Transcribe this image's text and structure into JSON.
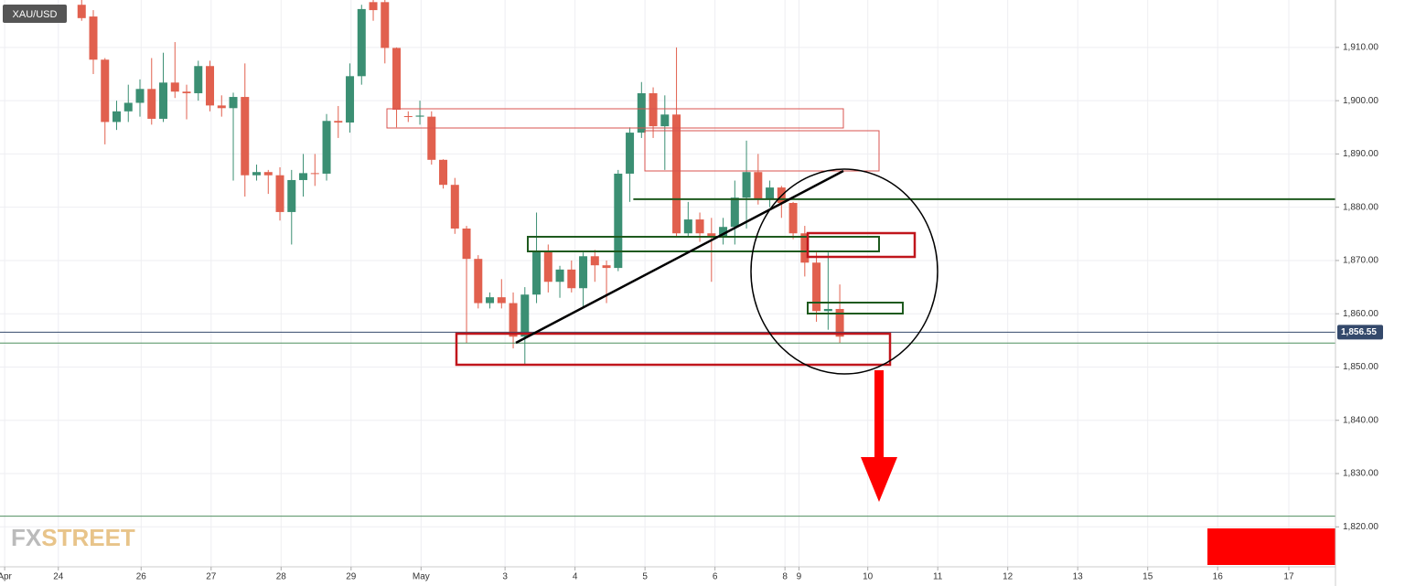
{
  "chart_data": {
    "type": "candlestick",
    "symbol": "XAU/USD",
    "logo": {
      "part1": "FX",
      "part2": "STREET"
    },
    "up_color": "#3b8f73",
    "down_color": "#e1604e",
    "xlim": [
      0,
      114.5
    ],
    "ylim": [
      1812.5,
      1918.9
    ],
    "yticks": [
      {
        "value": 1820,
        "label": "1,820.00"
      },
      {
        "value": 1830,
        "label": "1,830.00"
      },
      {
        "value": 1840,
        "label": "1,840.00"
      },
      {
        "value": 1850,
        "label": "1,850.00"
      },
      {
        "value": 1860,
        "label": "1,860.00"
      },
      {
        "value": 1870,
        "label": "1,870.00"
      },
      {
        "value": 1880,
        "label": "1,880.00"
      },
      {
        "value": 1890,
        "label": "1,890.00"
      },
      {
        "value": 1900,
        "label": "1,900.00"
      },
      {
        "value": 1910,
        "label": "1,910.00"
      }
    ],
    "xticks": [
      {
        "value": 0.4,
        "label": "Apr"
      },
      {
        "value": 5.0,
        "label": "24"
      },
      {
        "value": 12.1,
        "label": "26"
      },
      {
        "value": 18.1,
        "label": "27"
      },
      {
        "value": 24.1,
        "label": "28"
      },
      {
        "value": 30.1,
        "label": "29"
      },
      {
        "value": 36.1,
        "label": "May"
      },
      {
        "value": 43.3,
        "label": "3"
      },
      {
        "value": 49.3,
        "label": "4"
      },
      {
        "value": 55.3,
        "label": "5"
      },
      {
        "value": 61.3,
        "label": "6"
      },
      {
        "value": 67.3,
        "label": "8"
      },
      {
        "value": 68.5,
        "label": "9"
      },
      {
        "value": 74.4,
        "label": "10"
      },
      {
        "value": 80.4,
        "label": "11"
      },
      {
        "value": 86.4,
        "label": "12"
      },
      {
        "value": 92.4,
        "label": "13"
      },
      {
        "value": 98.4,
        "label": "15"
      },
      {
        "value": 104.4,
        "label": "16"
      },
      {
        "value": 110.5,
        "label": "17"
      }
    ],
    "x": [
      7,
      8,
      9,
      10,
      11,
      12,
      13,
      14,
      15,
      16,
      17,
      18,
      19,
      20,
      21,
      22,
      23,
      24,
      25,
      26,
      27,
      28,
      29,
      30,
      31,
      32,
      33,
      34,
      35,
      36,
      37,
      38,
      39,
      40,
      41,
      42,
      43,
      44,
      45,
      46,
      47,
      48,
      49,
      50,
      51,
      52,
      53,
      54,
      55,
      56,
      57,
      58,
      59,
      60,
      61,
      62,
      63,
      64,
      65,
      66,
      67,
      68,
      69,
      70,
      71,
      72
    ],
    "open": [
      1918,
      1915.8,
      1907.7,
      1896,
      1898,
      1899.6,
      1902.2,
      1896.6,
      1903.4,
      1901.7,
      1901.4,
      1906.5,
      1899.1,
      1898.6,
      1900.7,
      1886,
      1886.6,
      1886,
      1879.1,
      1885.1,
      1886.4,
      1886.3,
      1896.2,
      1895.9,
      1904.6,
      1918.5,
      1918.5,
      1909.9,
      1897.1,
      1897,
      1897,
      1888.9,
      1884.2,
      1876,
      1870.3,
      1862,
      1863.1,
      1862,
      1855.7,
      1863.6,
      1871.7,
      1866,
      1868.3,
      1864.8,
      1870.8,
      1869.1,
      1868.6,
      1886.3,
      1894,
      1901.4,
      1895.2,
      1897.4,
      1875.1,
      1877.7,
      1875.1,
      1874.6,
      1876.3,
      1881.8,
      1886.6,
      1881.5,
      1883.7,
      1880.8,
      1875.1,
      1869.6,
      1860.5,
      1860.9
    ],
    "high": [
      1918.9,
      1917,
      1908,
      1900,
      1903,
      1904,
      1908,
      1909,
      1911,
      1903,
      1907.5,
      1907.5,
      1901,
      1901.5,
      1907,
      1888,
      1887,
      1887.5,
      1887,
      1890,
      1890,
      1897.5,
      1899,
      1907,
      1918,
      1918.9,
      1918.9,
      1910,
      1898,
      1900,
      1898,
      1889,
      1885.5,
      1876.5,
      1871,
      1864,
      1866.5,
      1864,
      1865,
      1879,
      1873,
      1869,
      1870,
      1871.5,
      1872,
      1870,
      1887,
      1895,
      1903.5,
      1902.5,
      1901,
      1910,
      1881,
      1879,
      1878,
      1878,
      1885,
      1892.5,
      1890,
      1885,
      1884,
      1881,
      1876.5,
      1871.5,
      1871.5,
      1865.5
    ],
    "low": [
      1915,
      1905,
      1891.8,
      1894.5,
      1896,
      1897,
      1895.5,
      1896,
      1900.5,
      1896.5,
      1900,
      1898,
      1897,
      1885,
      1882,
      1885,
      1882.5,
      1877.5,
      1873,
      1882,
      1884,
      1885,
      1893,
      1894,
      1903,
      1915,
      1907,
      1895,
      1896,
      1895.5,
      1888,
      1883.5,
      1875,
      1854.5,
      1861,
      1861,
      1861,
      1853.5,
      1850.5,
      1862,
      1864,
      1863,
      1864,
      1861,
      1866,
      1862,
      1868,
      1881,
      1893,
      1893,
      1887,
      1874.5,
      1874.5,
      1873.5,
      1866,
      1873,
      1873,
      1876,
      1880.5,
      1880,
      1878,
      1874,
      1867,
      1858.5,
      1857,
      1854.5
    ],
    "close": [
      1915.5,
      1907.7,
      1896,
      1898,
      1899.6,
      1902.2,
      1896.6,
      1903.4,
      1901.7,
      1901.4,
      1906.5,
      1899.1,
      1898.6,
      1900.7,
      1886,
      1886.6,
      1886,
      1879.1,
      1885.1,
      1886.4,
      1886.3,
      1896.2,
      1895.9,
      1904.6,
      1917.2,
      1917,
      1909.9,
      1898.3,
      1897,
      1897.2,
      1888.9,
      1884.2,
      1876,
      1870.3,
      1862,
      1863.1,
      1862,
      1855.7,
      1863.6,
      1871.7,
      1866,
      1868.3,
      1864.8,
      1870.8,
      1869.1,
      1868.6,
      1886.3,
      1894,
      1901.4,
      1895.2,
      1897.4,
      1875.1,
      1877.7,
      1875.1,
      1874.6,
      1876.3,
      1881.8,
      1886.6,
      1881.5,
      1883.7,
      1880.8,
      1875.1,
      1869.6,
      1860.5,
      1860.9,
      1855.7
    ],
    "levels": [
      {
        "value": 1881.5,
        "color": "#1e5a1e",
        "x0": 54.3
      },
      {
        "value": 1854.5,
        "color": "#4f8f5f",
        "x0": 0
      },
      {
        "value": 1822,
        "color": "#4f8f5f",
        "x0": 0
      }
    ],
    "last_price": {
      "value": 1856.55,
      "label": "1,856.55",
      "color": "#34496b"
    }
  }
}
